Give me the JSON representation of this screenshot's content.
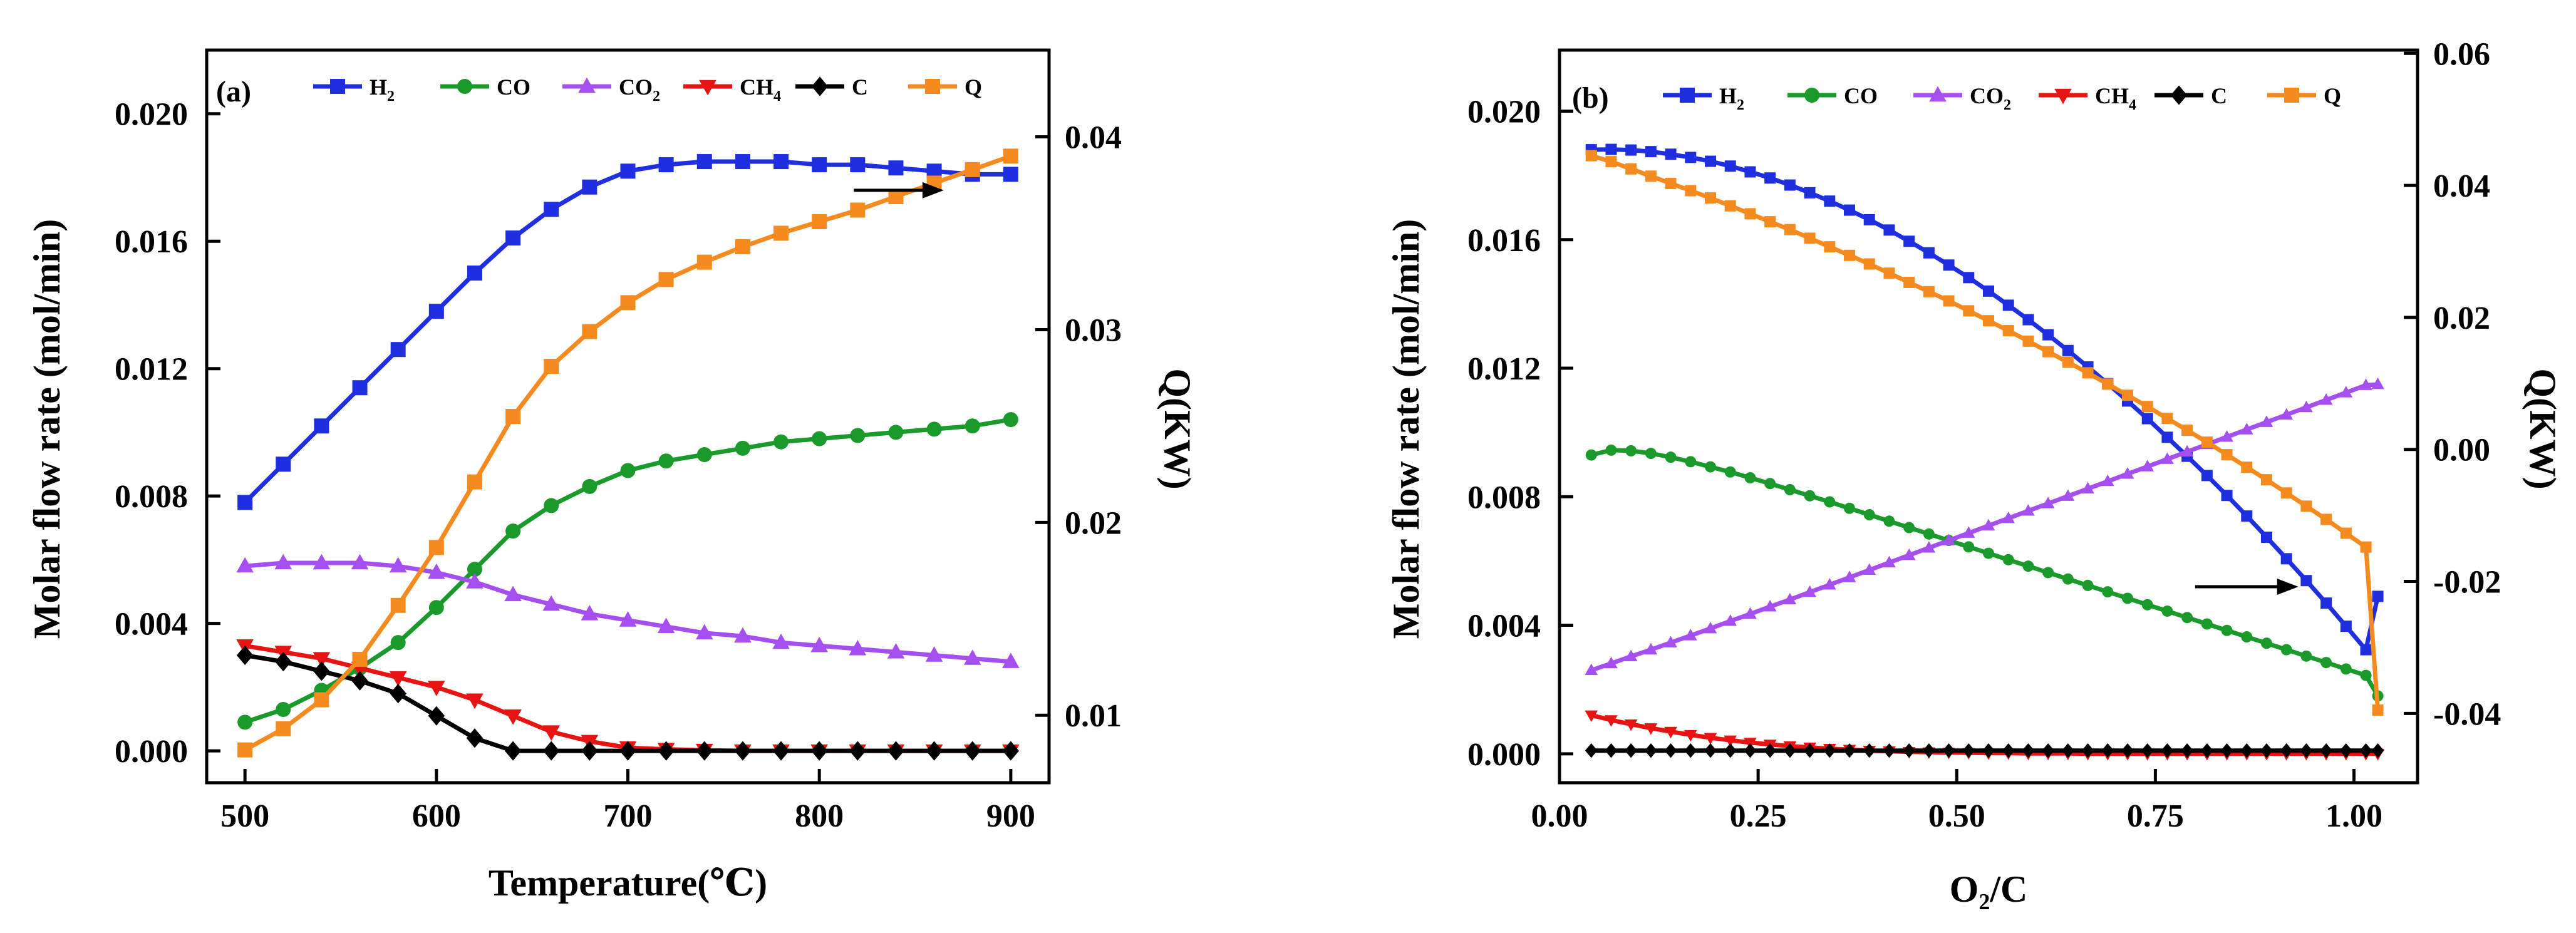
{
  "chart_data": [
    {
      "type": "line",
      "panel_label": "(a)",
      "xlabel": "Temperature(℃)",
      "ylabel_left": "Molar flow rate (mol/min)",
      "ylabel_right": "Q(KW)",
      "xlim": [
        480,
        920
      ],
      "ylim_left": [
        -0.001,
        0.022
      ],
      "ylim_right": [
        0.0065,
        0.0445
      ],
      "xticks": [
        500,
        600,
        700,
        800,
        900
      ],
      "xtick_labels": [
        "500",
        "600",
        "700",
        "800",
        "900"
      ],
      "yticks_left": [
        0,
        0.004,
        0.008,
        0.012,
        0.016,
        0.02
      ],
      "ytick_labels_left": [
        "0.000",
        "0.004",
        "0.008",
        "0.012",
        "0.016",
        "0.020"
      ],
      "yticks_right": [
        0.01,
        0.02,
        0.03,
        0.04
      ],
      "ytick_labels_right": [
        "0.01",
        "0.02",
        "0.03",
        "0.04"
      ],
      "legend_placement": "top",
      "arrow": {
        "direction": "right",
        "x_from": 818,
        "x_to": 865,
        "y": 0.0176
      },
      "x": [
        500,
        520,
        540,
        560,
        580,
        600,
        620,
        640,
        660,
        680,
        700,
        720,
        740,
        760,
        780,
        800,
        820,
        840,
        860,
        880,
        900
      ],
      "series": [
        {
          "name": "H2",
          "label": "H",
          "sub": "2",
          "color": "#1f2fe0",
          "marker": "square",
          "axis": "left",
          "values": [
            0.0078,
            0.009,
            0.0102,
            0.0114,
            0.0126,
            0.0138,
            0.015,
            0.0161,
            0.017,
            0.0177,
            0.0182,
            0.0184,
            0.0185,
            0.0185,
            0.0185,
            0.0184,
            0.0184,
            0.0183,
            0.0182,
            0.0181,
            0.0181
          ]
        },
        {
          "name": "CO",
          "label": "CO",
          "sub": "",
          "color": "#1a9a2a",
          "marker": "circle",
          "axis": "left",
          "values": [
            0.0009,
            0.0013,
            0.0019,
            0.0026,
            0.0034,
            0.0045,
            0.0057,
            0.0069,
            0.0077,
            0.0083,
            0.0088,
            0.0091,
            0.0093,
            0.0095,
            0.0097,
            0.0098,
            0.0099,
            0.01,
            0.0101,
            0.0102,
            0.0104
          ]
        },
        {
          "name": "CO2",
          "label": "CO",
          "sub": "2",
          "color": "#a64ff0",
          "marker": "triangle-up",
          "axis": "left",
          "values": [
            0.0058,
            0.0059,
            0.0059,
            0.0059,
            0.0058,
            0.0056,
            0.0053,
            0.0049,
            0.0046,
            0.0043,
            0.0041,
            0.0039,
            0.0037,
            0.0036,
            0.0034,
            0.0033,
            0.0032,
            0.0031,
            0.003,
            0.0029,
            0.0028
          ]
        },
        {
          "name": "CH4",
          "label": "CH",
          "sub": "4",
          "color": "#e81414",
          "marker": "triangle-down",
          "axis": "left",
          "values": [
            0.0033,
            0.0031,
            0.0029,
            0.0026,
            0.0023,
            0.002,
            0.0016,
            0.0011,
            0.0006,
            0.0003,
            0.0001,
            5e-05,
            2e-05,
            0.0,
            0.0,
            0.0,
            0.0,
            0.0,
            0.0,
            0.0,
            0.0
          ]
        },
        {
          "name": "C",
          "label": "C",
          "sub": "",
          "color": "#000000",
          "marker": "diamond",
          "axis": "left",
          "values": [
            0.003,
            0.0028,
            0.0025,
            0.0022,
            0.0018,
            0.0011,
            0.0004,
            0.0,
            0.0,
            0.0,
            0.0,
            0.0,
            0.0,
            0.0,
            0.0,
            0.0,
            0.0,
            0.0,
            0.0,
            0.0,
            0.0
          ]
        },
        {
          "name": "Q",
          "label": "Q",
          "sub": "",
          "color": "#f58b1f",
          "marker": "square",
          "axis": "right",
          "values": [
            0.0082,
            0.0093,
            0.0108,
            0.0129,
            0.0157,
            0.0187,
            0.0221,
            0.0255,
            0.0281,
            0.0299,
            0.0314,
            0.0326,
            0.0335,
            0.0343,
            0.035,
            0.0356,
            0.0362,
            0.0369,
            0.0376,
            0.0383,
            0.039
          ]
        }
      ]
    },
    {
      "type": "line",
      "panel_label": "(b)",
      "xlabel": "O₂/C",
      "ylabel_left": "Molar flow rate (mol/min)",
      "ylabel_right": "Q(KW)",
      "xlim": [
        0.0,
        1.08
      ],
      "ylim_left": [
        -0.0009,
        0.0219
      ],
      "ylim_right": [
        -0.0505,
        0.0605
      ],
      "xticks": [
        0.0,
        0.25,
        0.5,
        0.75,
        1.0
      ],
      "xtick_labels": [
        "0.00",
        "0.25",
        "0.50",
        "0.75",
        "1.00"
      ],
      "yticks_left": [
        0,
        0.004,
        0.008,
        0.012,
        0.016,
        0.02
      ],
      "ytick_labels_left": [
        "0.000",
        "0.004",
        "0.008",
        "0.012",
        "0.016",
        "0.020"
      ],
      "yticks_right": [
        -0.04,
        -0.02,
        0.0,
        0.02,
        0.04,
        0.06
      ],
      "ytick_labels_right": [
        "-0.04",
        "-0.02",
        "0.00",
        "0.02",
        "0.04",
        "0.06"
      ],
      "legend_placement": "top",
      "arrow": {
        "direction": "right",
        "x_from": 0.8,
        "x_to": 0.93,
        "y": 0.0052
      },
      "x": [
        0.04,
        0.065,
        0.09,
        0.115,
        0.14,
        0.165,
        0.19,
        0.215,
        0.24,
        0.265,
        0.29,
        0.315,
        0.34,
        0.365,
        0.39,
        0.415,
        0.44,
        0.465,
        0.49,
        0.515,
        0.54,
        0.565,
        0.59,
        0.615,
        0.64,
        0.665,
        0.69,
        0.715,
        0.74,
        0.765,
        0.79,
        0.815,
        0.84,
        0.865,
        0.89,
        0.915,
        0.94,
        0.965,
        0.99,
        1.015,
        1.03
      ],
      "series": [
        {
          "name": "H2",
          "label": "H",
          "sub": "2",
          "color": "#1f2fe0",
          "marker": "square",
          "axis": "left",
          "values": [
            0.0188,
            0.01881,
            0.01879,
            0.01874,
            0.01866,
            0.01856,
            0.01844,
            0.01829,
            0.01811,
            0.01792,
            0.0177,
            0.01746,
            0.0172,
            0.01692,
            0.01662,
            0.0163,
            0.01595,
            0.01559,
            0.01521,
            0.01482,
            0.0144,
            0.01396,
            0.01351,
            0.01304,
            0.01255,
            0.01204,
            0.01152,
            0.01098,
            0.01043,
            0.00985,
            0.00926,
            0.00866,
            0.00804,
            0.0074,
            0.00674,
            0.00607,
            0.00539,
            0.00469,
            0.00397,
            0.00324,
            0.0049
          ]
        },
        {
          "name": "CO",
          "label": "CO",
          "sub": "",
          "color": "#1a9a2a",
          "marker": "circle",
          "axis": "left",
          "values": [
            0.0093,
            0.00945,
            0.00943,
            0.00935,
            0.00923,
            0.00909,
            0.00893,
            0.00877,
            0.00859,
            0.00841,
            0.00822,
            0.00803,
            0.00784,
            0.00764,
            0.00744,
            0.00724,
            0.00704,
            0.00684,
            0.00664,
            0.00644,
            0.00624,
            0.00604,
            0.00584,
            0.00564,
            0.00544,
            0.00524,
            0.00504,
            0.00484,
            0.00464,
            0.00444,
            0.00424,
            0.00404,
            0.00384,
            0.00364,
            0.00344,
            0.00324,
            0.00304,
            0.00284,
            0.00264,
            0.00244,
            0.0018
          ]
        },
        {
          "name": "CO2",
          "label": "CO",
          "sub": "2",
          "color": "#a64ff0",
          "marker": "triangle-up",
          "axis": "left",
          "values": [
            0.0026,
            0.00281,
            0.00303,
            0.00324,
            0.00346,
            0.00368,
            0.0039,
            0.00413,
            0.00435,
            0.00458,
            0.0048,
            0.00503,
            0.00526,
            0.00549,
            0.00572,
            0.00595,
            0.00618,
            0.00641,
            0.00664,
            0.00687,
            0.0071,
            0.00733,
            0.00756,
            0.00779,
            0.00802,
            0.00825,
            0.00848,
            0.00871,
            0.00894,
            0.00917,
            0.0094,
            0.00963,
            0.00986,
            0.01009,
            0.01032,
            0.01055,
            0.01078,
            0.01101,
            0.01124,
            0.01147,
            0.0115
          ]
        },
        {
          "name": "CH4",
          "label": "CH",
          "sub": "4",
          "color": "#e81414",
          "marker": "triangle-down",
          "axis": "left",
          "values": [
            0.0012,
            0.00105,
            0.00092,
            0.0008,
            0.00069,
            0.00059,
            0.0005,
            0.00042,
            0.00035,
            0.00029,
            0.00024,
            0.0002,
            0.00016,
            0.00013,
            0.0001,
            8e-05,
            6e-05,
            5e-05,
            4e-05,
            3e-05,
            2e-05,
            2e-05,
            1e-05,
            1e-05,
            1e-05,
            0.0,
            0.0,
            0.0,
            0.0,
            0.0,
            0.0,
            0.0,
            0.0,
            0.0,
            0.0,
            0.0,
            0.0,
            0.0,
            0.0,
            0.0,
            0.0
          ]
        },
        {
          "name": "C",
          "label": "C",
          "sub": "",
          "color": "#000000",
          "marker": "diamond",
          "axis": "left",
          "values": [
            0.0001,
            0.0001,
            0.0001,
            0.0001,
            0.0001,
            0.0001,
            0.0001,
            0.0001,
            0.0001,
            0.0001,
            0.0001,
            0.0001,
            0.0001,
            0.0001,
            0.0001,
            0.0001,
            0.0001,
            0.0001,
            0.0001,
            0.0001,
            0.0001,
            0.0001,
            0.0001,
            0.0001,
            0.0001,
            0.0001,
            0.0001,
            0.0001,
            0.0001,
            0.0001,
            0.0001,
            0.0001,
            0.0001,
            0.0001,
            0.0001,
            0.0001,
            0.0001,
            0.0001,
            0.0001,
            0.0001,
            0.0001
          ]
        },
        {
          "name": "Q",
          "label": "Q",
          "sub": "",
          "color": "#f58b1f",
          "marker": "square",
          "axis": "right",
          "values": [
            0.0445,
            0.0436,
            0.0425,
            0.0414,
            0.0403,
            0.0392,
            0.0381,
            0.0369,
            0.0357,
            0.0345,
            0.0333,
            0.032,
            0.0307,
            0.0294,
            0.0281,
            0.0267,
            0.0253,
            0.0239,
            0.0225,
            0.021,
            0.0195,
            0.018,
            0.0164,
            0.0148,
            0.0132,
            0.0116,
            0.0099,
            0.0082,
            0.0065,
            0.0047,
            0.0029,
            0.0011,
            -0.0008,
            -0.0027,
            -0.0046,
            -0.0066,
            -0.0086,
            -0.0106,
            -0.0127,
            -0.0148,
            -0.0395
          ]
        }
      ]
    }
  ]
}
